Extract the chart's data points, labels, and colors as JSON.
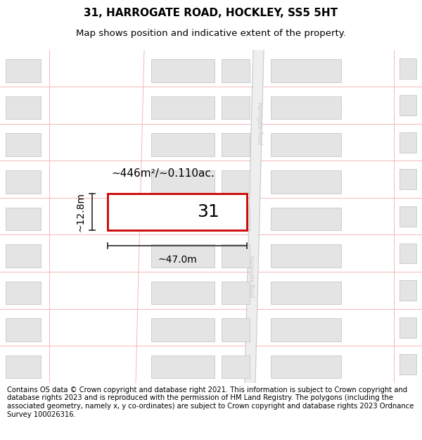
{
  "title": "31, HARROGATE ROAD, HOCKLEY, SS5 5HT",
  "subtitle": "Map shows position and indicative extent of the property.",
  "footer": "Contains OS data © Crown copyright and database right 2021. This information is subject to Crown copyright and database rights 2023 and is reproduced with the permission of HM Land Registry. The polygons (including the associated geometry, namely x, y co-ordinates) are subject to Crown copyright and database rights 2023 Ordnance Survey 100026316.",
  "bg_color": "#ffffff",
  "map_bg": "#ffffff",
  "road_line_color": "#f5b8b8",
  "plot_outline_color": "#cc0000",
  "road_fill_color": "#eeeeee",
  "road_border_color": "#cccccc",
  "road_text_color": "#c8c8c8",
  "building_fill": "#e4e4e4",
  "building_outline": "#c8c8c8",
  "dim_color": "#2a2a2a",
  "highlight_label": "31",
  "area_label": "~446m²/~0.110ac.",
  "width_label": "~47.0m",
  "height_label": "~12.8m",
  "title_fontsize": 11,
  "subtitle_fontsize": 9.5,
  "footer_fontsize": 7.2
}
